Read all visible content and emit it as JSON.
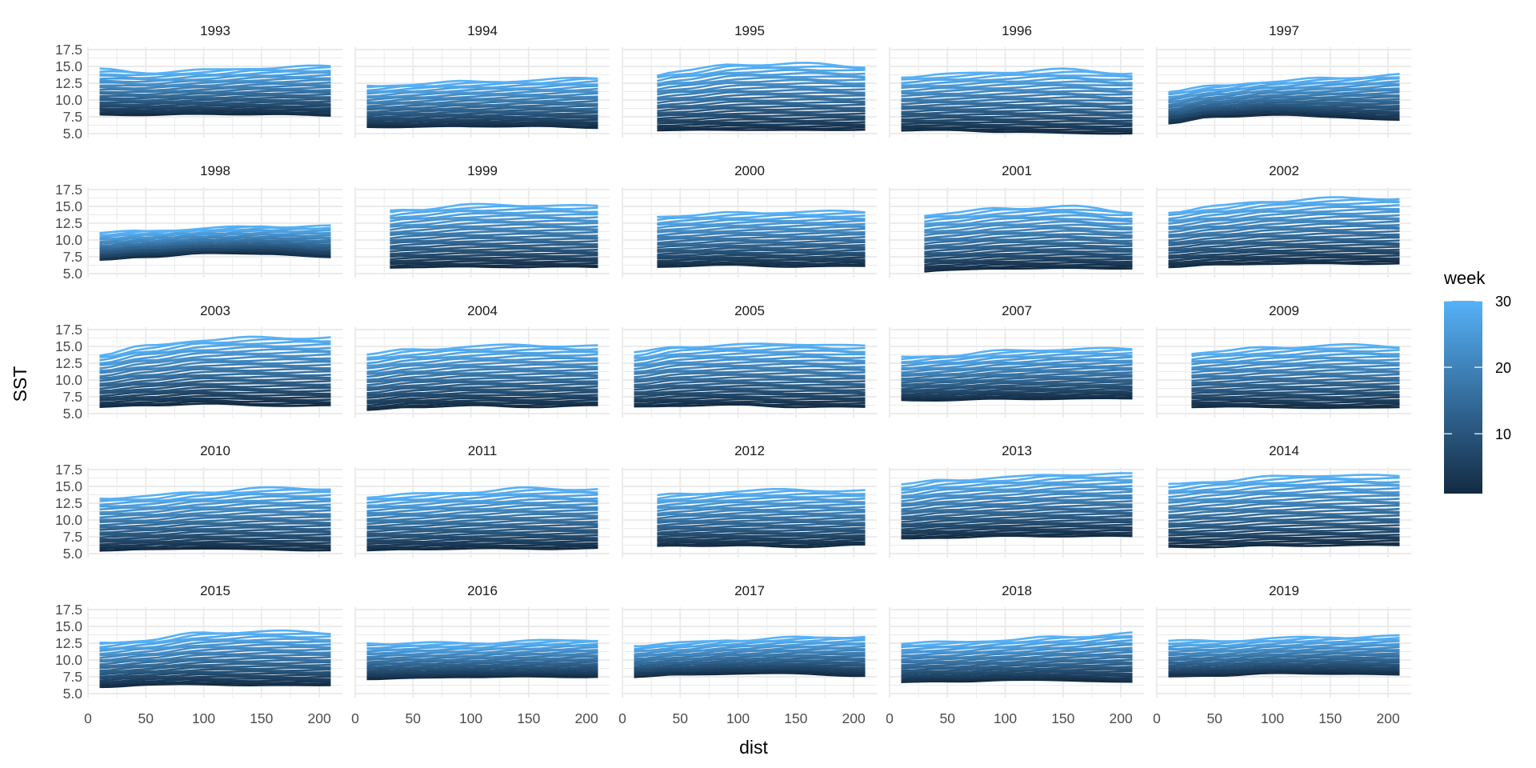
{
  "chart_data": {
    "type": "line",
    "layout": "faceted small multiples (5 x 5)",
    "xlabel": "dist",
    "ylabel": "SST",
    "xlim": [
      0,
      220
    ],
    "ylim": [
      4.4,
      17.86
    ],
    "x_ticks": [
      0,
      50,
      100,
      150,
      200
    ],
    "y_ticks": [
      "5.0",
      "7.5",
      "10.0",
      "12.5",
      "15.0",
      "17.5"
    ],
    "y_tick_values": [
      5,
      7.5,
      10,
      12.5,
      15,
      17.5
    ],
    "grid": true,
    "sample_dists": [
      10,
      50,
      100,
      150,
      210
    ],
    "color_legend": {
      "title": "week",
      "ticks": [
        "10",
        "20",
        "30"
      ],
      "tick_values": [
        10,
        20,
        30
      ],
      "range": [
        1,
        30
      ],
      "low_color": "#132B43",
      "high_color": "#56B1F7",
      "placement": "right"
    },
    "weeks": [
      1,
      30
    ],
    "panels": [
      {
        "year": "1993",
        "start": 10,
        "week_low": [
          7.8,
          7.8,
          7.9,
          7.9,
          7.7
        ],
        "week_high": [
          14.5,
          14.1,
          14.4,
          14.8,
          15.0
        ]
      },
      {
        "year": "1994",
        "start": 10,
        "week_low": [
          6.0,
          6.0,
          6.1,
          6.1,
          5.9
        ],
        "week_high": [
          12.0,
          12.4,
          12.7,
          12.9,
          13.3
        ]
      },
      {
        "year": "1995",
        "start": 30,
        "week_low": [
          5.5,
          5.5,
          5.6,
          5.5,
          5.6
        ],
        "week_high": [
          13.3,
          14.3,
          15.3,
          15.4,
          15.0
        ]
      },
      {
        "year": "1996",
        "start": 10,
        "week_low": [
          5.5,
          5.5,
          5.3,
          5.1,
          5.0
        ],
        "week_high": [
          13.5,
          13.8,
          14.2,
          14.5,
          14.0
        ]
      },
      {
        "year": "1997",
        "start": 10,
        "week_low": [
          6.5,
          7.5,
          7.8,
          7.5,
          7.0
        ],
        "week_high": [
          11.3,
          12.0,
          12.8,
          13.2,
          13.8
        ]
      },
      {
        "year": "1998",
        "start": 10,
        "week_low": [
          7.0,
          7.5,
          8.0,
          8.0,
          7.4
        ],
        "week_high": [
          11.0,
          11.3,
          11.7,
          12.0,
          12.0
        ]
      },
      {
        "year": "1999",
        "start": 30,
        "week_low": [
          5.8,
          6.0,
          6.0,
          6.0,
          6.0
        ],
        "week_high": [
          14.0,
          14.6,
          15.2,
          15.2,
          15.0
        ]
      },
      {
        "year": "2000",
        "start": 30,
        "week_low": [
          6.0,
          6.1,
          6.3,
          6.0,
          6.2
        ],
        "week_high": [
          13.3,
          13.7,
          14.0,
          14.2,
          14.2
        ]
      },
      {
        "year": "2001",
        "start": 30,
        "week_low": [
          5.2,
          5.5,
          5.8,
          5.8,
          5.8
        ],
        "week_high": [
          13.5,
          14.0,
          14.7,
          15.0,
          14.2
        ]
      },
      {
        "year": "2002",
        "start": 10,
        "week_low": [
          6.0,
          6.3,
          6.5,
          6.5,
          6.5
        ],
        "week_high": [
          14.2,
          15.0,
          15.8,
          16.2,
          16.2
        ]
      },
      {
        "year": "2003",
        "start": 10,
        "week_low": [
          6.0,
          6.2,
          6.5,
          6.2,
          6.2
        ],
        "week_high": [
          13.8,
          15.0,
          16.0,
          16.3,
          16.3
        ]
      },
      {
        "year": "2004",
        "start": 10,
        "week_low": [
          5.5,
          6.0,
          6.2,
          6.0,
          6.2
        ],
        "week_high": [
          13.8,
          14.5,
          15.0,
          15.2,
          15.0
        ]
      },
      {
        "year": "2005",
        "start": 10,
        "week_low": [
          6.0,
          6.2,
          6.3,
          6.0,
          6.0
        ],
        "week_high": [
          14.0,
          15.0,
          15.2,
          15.4,
          15.0
        ]
      },
      {
        "year": "2007",
        "start": 10,
        "week_low": [
          7.0,
          7.0,
          7.2,
          7.2,
          7.3
        ],
        "week_high": [
          13.3,
          13.7,
          14.3,
          14.6,
          14.6
        ]
      },
      {
        "year": "2009",
        "start": 30,
        "week_low": [
          6.0,
          6.0,
          6.0,
          5.8,
          6.0
        ],
        "week_high": [
          13.8,
          14.3,
          14.8,
          15.2,
          15.0
        ]
      },
      {
        "year": "2010",
        "start": 10,
        "week_low": [
          5.5,
          5.6,
          5.8,
          5.6,
          5.5
        ],
        "week_high": [
          13.3,
          13.5,
          14.2,
          14.7,
          14.7
        ]
      },
      {
        "year": "2011",
        "start": 10,
        "week_low": [
          5.5,
          5.6,
          5.8,
          5.7,
          5.8
        ],
        "week_high": [
          13.5,
          13.8,
          14.2,
          14.7,
          14.6
        ]
      },
      {
        "year": "2012",
        "start": 30,
        "week_low": [
          6.0,
          6.2,
          6.2,
          6.0,
          6.3
        ],
        "week_high": [
          13.3,
          13.8,
          14.3,
          14.5,
          14.3
        ]
      },
      {
        "year": "2013",
        "start": 10,
        "week_low": [
          7.2,
          7.4,
          7.6,
          7.6,
          7.6
        ],
        "week_high": [
          15.2,
          16.0,
          16.3,
          16.8,
          16.8
        ]
      },
      {
        "year": "2014",
        "start": 10,
        "week_low": [
          6.0,
          6.0,
          6.2,
          6.2,
          6.3
        ],
        "week_high": [
          15.2,
          15.8,
          16.4,
          16.7,
          16.5
        ]
      },
      {
        "year": "2015",
        "start": 10,
        "week_low": [
          6.0,
          6.3,
          6.4,
          6.2,
          6.3
        ],
        "week_high": [
          12.5,
          13.0,
          14.0,
          14.3,
          14.0
        ]
      },
      {
        "year": "2016",
        "start": 10,
        "week_low": [
          7.2,
          7.3,
          7.5,
          7.5,
          7.5
        ],
        "week_high": [
          12.5,
          12.5,
          12.5,
          12.8,
          13.0
        ]
      },
      {
        "year": "2017",
        "start": 10,
        "week_low": [
          7.5,
          7.8,
          8.0,
          8.0,
          7.6
        ],
        "week_high": [
          12.2,
          12.5,
          13.0,
          13.3,
          13.5
        ]
      },
      {
        "year": "2018",
        "start": 10,
        "week_low": [
          6.7,
          6.8,
          7.0,
          7.0,
          6.7
        ],
        "week_high": [
          12.5,
          12.6,
          13.0,
          13.4,
          14.0
        ]
      },
      {
        "year": "2019",
        "start": 10,
        "week_low": [
          7.5,
          7.7,
          8.0,
          8.0,
          7.8
        ],
        "week_high": [
          12.8,
          12.8,
          13.2,
          13.4,
          13.5
        ]
      }
    ]
  }
}
